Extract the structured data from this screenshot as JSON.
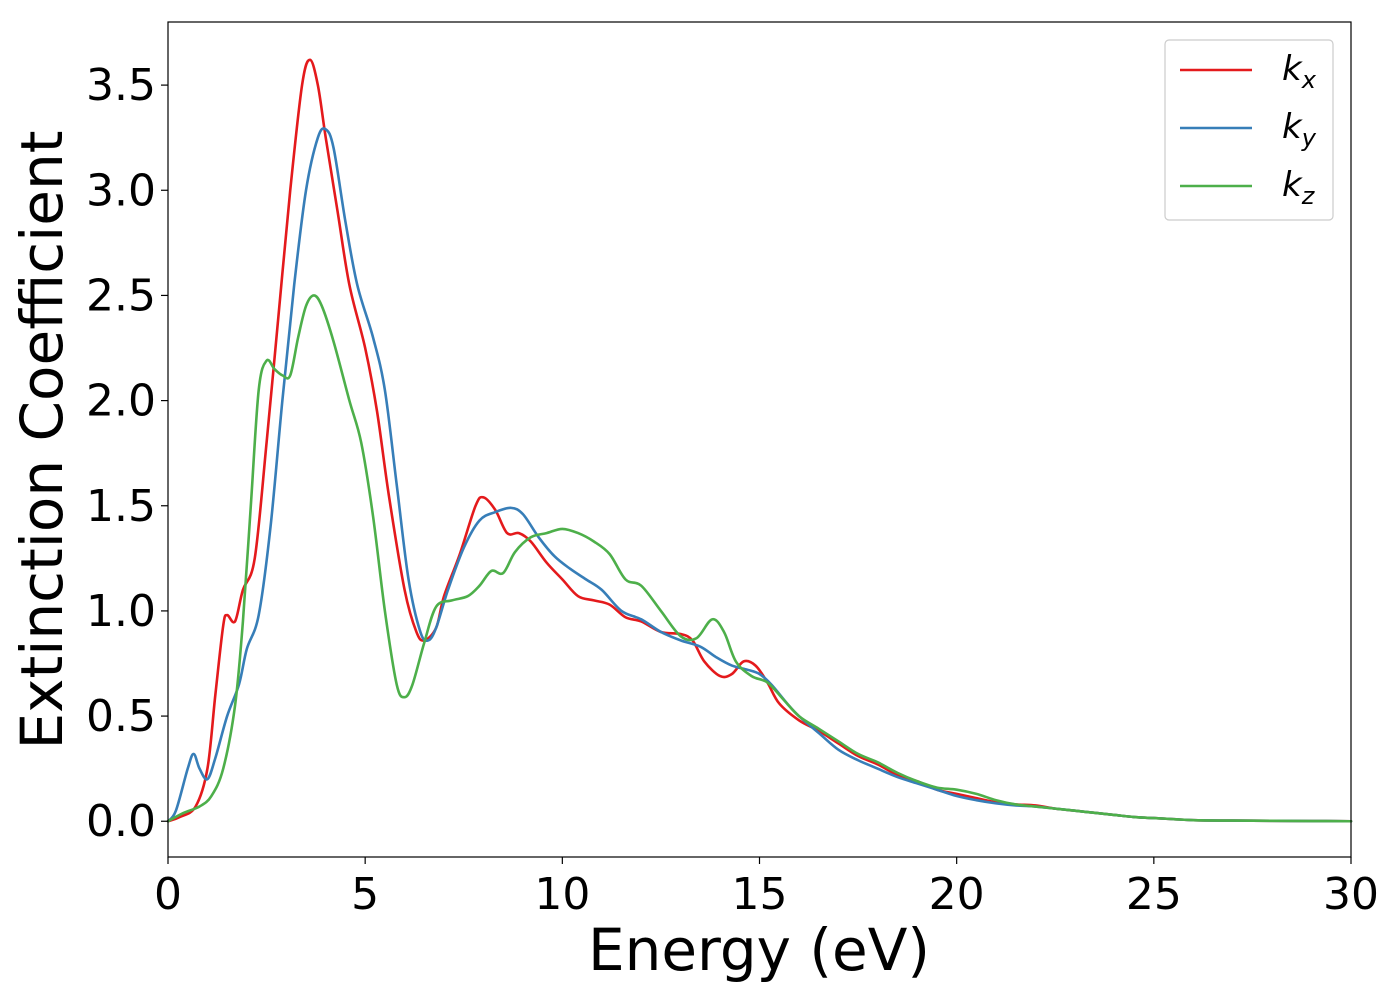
{
  "chart_data": {
    "type": "line",
    "xlabel": "Energy (eV)",
    "ylabel": "Extinction Coefficient",
    "xlim": [
      0,
      30
    ],
    "ylim": [
      -0.17,
      3.8
    ],
    "xticks": [
      0,
      5,
      10,
      15,
      20,
      25,
      30
    ],
    "xtick_labels": [
      "0",
      "5",
      "10",
      "15",
      "20",
      "25",
      "30"
    ],
    "yticks": [
      0.0,
      0.5,
      1.0,
      1.5,
      2.0,
      2.5,
      3.0,
      3.5
    ],
    "ytick_labels": [
      "0.0",
      "0.5",
      "1.0",
      "1.5",
      "2.0",
      "2.5",
      "3.0",
      "3.5"
    ],
    "grid": false,
    "legend_position": "top-right",
    "series": [
      {
        "name": "kx",
        "base": "k",
        "sub": "x",
        "color": "#e41a1c",
        "points": [
          [
            0,
            0
          ],
          [
            0.3,
            0.02
          ],
          [
            0.7,
            0.07
          ],
          [
            1.0,
            0.25
          ],
          [
            1.2,
            0.6
          ],
          [
            1.4,
            0.93
          ],
          [
            1.5,
            0.98
          ],
          [
            1.7,
            0.95
          ],
          [
            1.9,
            1.1
          ],
          [
            2.2,
            1.25
          ],
          [
            2.5,
            1.8
          ],
          [
            2.8,
            2.4
          ],
          [
            3.1,
            3.0
          ],
          [
            3.4,
            3.5
          ],
          [
            3.6,
            3.62
          ],
          [
            3.8,
            3.5
          ],
          [
            4.0,
            3.25
          ],
          [
            4.3,
            2.9
          ],
          [
            4.6,
            2.55
          ],
          [
            5.0,
            2.25
          ],
          [
            5.3,
            1.95
          ],
          [
            5.6,
            1.55
          ],
          [
            6.0,
            1.1
          ],
          [
            6.3,
            0.9
          ],
          [
            6.5,
            0.86
          ],
          [
            6.8,
            0.92
          ],
          [
            7.0,
            1.07
          ],
          [
            7.4,
            1.27
          ],
          [
            7.8,
            1.5
          ],
          [
            8.0,
            1.54
          ],
          [
            8.3,
            1.48
          ],
          [
            8.6,
            1.37
          ],
          [
            8.9,
            1.37
          ],
          [
            9.2,
            1.33
          ],
          [
            9.6,
            1.23
          ],
          [
            10.0,
            1.15
          ],
          [
            10.4,
            1.07
          ],
          [
            10.8,
            1.05
          ],
          [
            11.2,
            1.03
          ],
          [
            11.6,
            0.97
          ],
          [
            12.0,
            0.95
          ],
          [
            12.5,
            0.9
          ],
          [
            13.0,
            0.89
          ],
          [
            13.3,
            0.86
          ],
          [
            13.6,
            0.76
          ],
          [
            14.0,
            0.69
          ],
          [
            14.3,
            0.7
          ],
          [
            14.6,
            0.76
          ],
          [
            14.9,
            0.74
          ],
          [
            15.2,
            0.66
          ],
          [
            15.5,
            0.56
          ],
          [
            16.0,
            0.48
          ],
          [
            16.5,
            0.43
          ],
          [
            17.0,
            0.37
          ],
          [
            17.5,
            0.31
          ],
          [
            18.0,
            0.27
          ],
          [
            18.5,
            0.22
          ],
          [
            19.0,
            0.19
          ],
          [
            19.5,
            0.15
          ],
          [
            20.0,
            0.13
          ],
          [
            20.5,
            0.11
          ],
          [
            21.0,
            0.09
          ],
          [
            21.5,
            0.08
          ],
          [
            22.0,
            0.075
          ],
          [
            22.5,
            0.06
          ],
          [
            23.0,
            0.05
          ],
          [
            23.5,
            0.04
          ],
          [
            24.0,
            0.03
          ],
          [
            24.5,
            0.02
          ],
          [
            25.0,
            0.015
          ],
          [
            25.5,
            0.01
          ],
          [
            26.0,
            0.005
          ],
          [
            27.0,
            0.003
          ],
          [
            28.0,
            0.002
          ],
          [
            29.0,
            0.001
          ],
          [
            30.0,
            0.0
          ]
        ]
      },
      {
        "name": "ky",
        "base": "k",
        "sub": "y",
        "color": "#377eb8",
        "points": [
          [
            0,
            0
          ],
          [
            0.2,
            0.05
          ],
          [
            0.5,
            0.25
          ],
          [
            0.65,
            0.32
          ],
          [
            0.8,
            0.25
          ],
          [
            1.0,
            0.2
          ],
          [
            1.2,
            0.3
          ],
          [
            1.5,
            0.5
          ],
          [
            1.8,
            0.65
          ],
          [
            2.0,
            0.82
          ],
          [
            2.3,
            0.98
          ],
          [
            2.6,
            1.4
          ],
          [
            2.9,
            2.0
          ],
          [
            3.2,
            2.55
          ],
          [
            3.5,
            3.0
          ],
          [
            3.8,
            3.25
          ],
          [
            4.0,
            3.29
          ],
          [
            4.2,
            3.2
          ],
          [
            4.5,
            2.85
          ],
          [
            4.8,
            2.55
          ],
          [
            5.2,
            2.3
          ],
          [
            5.5,
            2.05
          ],
          [
            5.8,
            1.6
          ],
          [
            6.1,
            1.15
          ],
          [
            6.4,
            0.9
          ],
          [
            6.6,
            0.86
          ],
          [
            6.8,
            0.92
          ],
          [
            7.1,
            1.1
          ],
          [
            7.5,
            1.3
          ],
          [
            7.9,
            1.43
          ],
          [
            8.3,
            1.47
          ],
          [
            8.7,
            1.49
          ],
          [
            9.0,
            1.46
          ],
          [
            9.4,
            1.35
          ],
          [
            9.8,
            1.26
          ],
          [
            10.2,
            1.2
          ],
          [
            10.6,
            1.15
          ],
          [
            11.0,
            1.1
          ],
          [
            11.5,
            1.0
          ],
          [
            12.0,
            0.96
          ],
          [
            12.5,
            0.9
          ],
          [
            13.0,
            0.86
          ],
          [
            13.5,
            0.83
          ],
          [
            13.9,
            0.78
          ],
          [
            14.3,
            0.74
          ],
          [
            14.7,
            0.72
          ],
          [
            15.0,
            0.7
          ],
          [
            15.3,
            0.65
          ],
          [
            15.7,
            0.56
          ],
          [
            16.0,
            0.5
          ],
          [
            16.5,
            0.42
          ],
          [
            17.0,
            0.34
          ],
          [
            17.5,
            0.29
          ],
          [
            18.0,
            0.25
          ],
          [
            18.5,
            0.21
          ],
          [
            19.0,
            0.18
          ],
          [
            19.5,
            0.15
          ],
          [
            20.0,
            0.12
          ],
          [
            20.5,
            0.1
          ],
          [
            21.0,
            0.085
          ],
          [
            21.5,
            0.075
          ],
          [
            22.0,
            0.07
          ],
          [
            22.5,
            0.06
          ],
          [
            23.0,
            0.05
          ],
          [
            23.5,
            0.04
          ],
          [
            24.0,
            0.03
          ],
          [
            24.5,
            0.02
          ],
          [
            25.0,
            0.015
          ],
          [
            25.5,
            0.01
          ],
          [
            26.0,
            0.005
          ],
          [
            27.0,
            0.003
          ],
          [
            28.0,
            0.002
          ],
          [
            29.0,
            0.001
          ],
          [
            30.0,
            0.0
          ]
        ]
      },
      {
        "name": "kz",
        "base": "k",
        "sub": "z",
        "color": "#4daf4a",
        "points": [
          [
            0,
            0
          ],
          [
            0.4,
            0.04
          ],
          [
            0.8,
            0.07
          ],
          [
            1.1,
            0.12
          ],
          [
            1.4,
            0.25
          ],
          [
            1.7,
            0.55
          ],
          [
            1.9,
            0.95
          ],
          [
            2.1,
            1.5
          ],
          [
            2.3,
            2.05
          ],
          [
            2.5,
            2.19
          ],
          [
            2.7,
            2.15
          ],
          [
            2.9,
            2.12
          ],
          [
            3.1,
            2.12
          ],
          [
            3.3,
            2.3
          ],
          [
            3.5,
            2.45
          ],
          [
            3.7,
            2.5
          ],
          [
            3.9,
            2.45
          ],
          [
            4.2,
            2.28
          ],
          [
            4.6,
            2.0
          ],
          [
            4.9,
            1.8
          ],
          [
            5.2,
            1.45
          ],
          [
            5.5,
            1.0
          ],
          [
            5.8,
            0.65
          ],
          [
            6.0,
            0.59
          ],
          [
            6.2,
            0.65
          ],
          [
            6.5,
            0.85
          ],
          [
            6.8,
            1.02
          ],
          [
            7.2,
            1.05
          ],
          [
            7.6,
            1.07
          ],
          [
            7.9,
            1.12
          ],
          [
            8.2,
            1.19
          ],
          [
            8.5,
            1.18
          ],
          [
            8.8,
            1.28
          ],
          [
            9.2,
            1.35
          ],
          [
            9.6,
            1.37
          ],
          [
            10.0,
            1.39
          ],
          [
            10.4,
            1.37
          ],
          [
            10.8,
            1.33
          ],
          [
            11.2,
            1.27
          ],
          [
            11.6,
            1.15
          ],
          [
            12.0,
            1.12
          ],
          [
            12.5,
            1.0
          ],
          [
            13.0,
            0.88
          ],
          [
            13.4,
            0.87
          ],
          [
            13.8,
            0.96
          ],
          [
            14.1,
            0.9
          ],
          [
            14.4,
            0.76
          ],
          [
            14.8,
            0.69
          ],
          [
            15.2,
            0.66
          ],
          [
            15.6,
            0.58
          ],
          [
            16.0,
            0.5
          ],
          [
            16.5,
            0.44
          ],
          [
            17.0,
            0.38
          ],
          [
            17.5,
            0.32
          ],
          [
            18.0,
            0.28
          ],
          [
            18.5,
            0.23
          ],
          [
            19.0,
            0.19
          ],
          [
            19.5,
            0.16
          ],
          [
            20.0,
            0.15
          ],
          [
            20.5,
            0.13
          ],
          [
            21.0,
            0.1
          ],
          [
            21.5,
            0.08
          ],
          [
            22.0,
            0.07
          ],
          [
            22.5,
            0.06
          ],
          [
            23.0,
            0.05
          ],
          [
            23.5,
            0.04
          ],
          [
            24.0,
            0.03
          ],
          [
            24.5,
            0.02
          ],
          [
            25.0,
            0.015
          ],
          [
            25.5,
            0.01
          ],
          [
            26.0,
            0.005
          ],
          [
            27.0,
            0.003
          ],
          [
            28.0,
            0.002
          ],
          [
            29.0,
            0.001
          ],
          [
            30.0,
            0.0
          ]
        ]
      }
    ]
  }
}
